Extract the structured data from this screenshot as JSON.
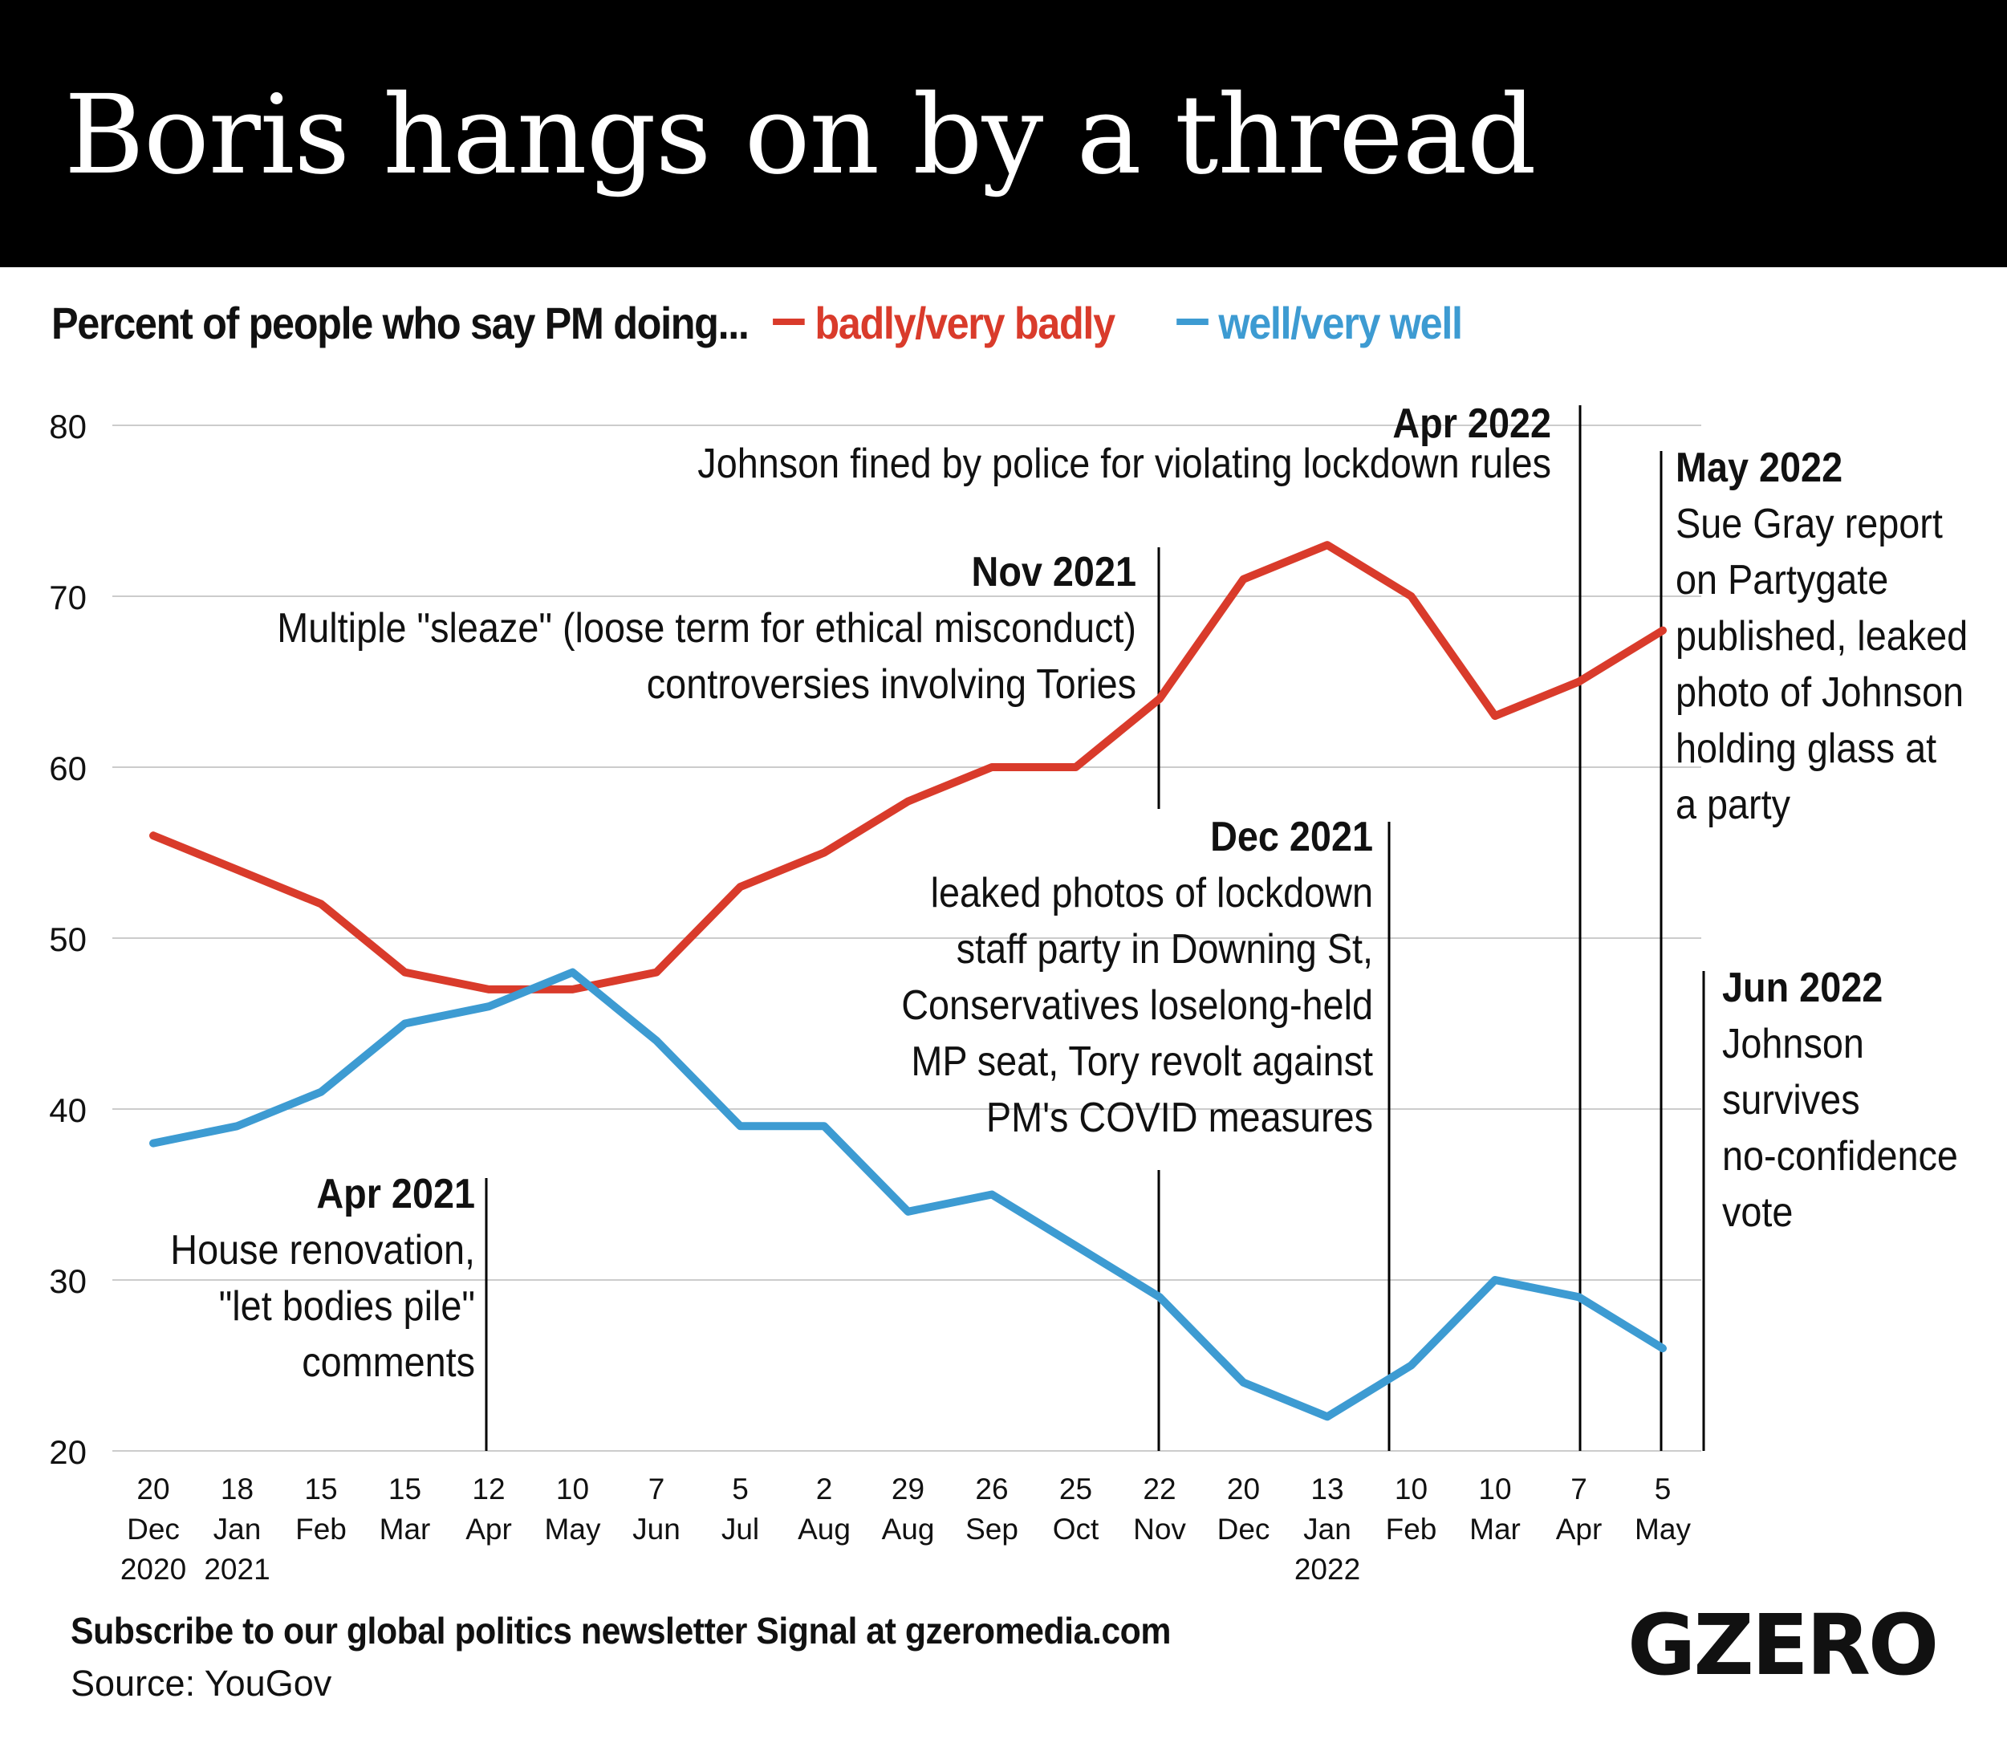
{
  "header": {
    "title": "Boris hangs on by a thread"
  },
  "subtitle": {
    "prefix": "Percent of people who say PM doing...",
    "series_labels": [
      "badly/very badly",
      "well/very well"
    ]
  },
  "colors": {
    "badly": "#d93b2b",
    "well": "#3d9bd2",
    "grid": "#cccccc",
    "text": "#111111",
    "header_bg": "#000000"
  },
  "chart_data": {
    "type": "line",
    "x_labels": [
      [
        "20",
        "Dec",
        "2020"
      ],
      [
        "18",
        "Jan",
        "2021"
      ],
      [
        "15",
        "Feb"
      ],
      [
        "15",
        "Mar"
      ],
      [
        "12",
        "Apr"
      ],
      [
        "10",
        "May"
      ],
      [
        "7",
        "Jun"
      ],
      [
        "5",
        "Jul"
      ],
      [
        "2",
        "Aug"
      ],
      [
        "29",
        "Aug"
      ],
      [
        "26",
        "Sep"
      ],
      [
        "25",
        "Oct"
      ],
      [
        "22",
        "Nov"
      ],
      [
        "20",
        "Dec"
      ],
      [
        "13",
        "Jan",
        "2022"
      ],
      [
        "10",
        "Feb"
      ],
      [
        "10",
        "Mar"
      ],
      [
        "7",
        "Apr"
      ],
      [
        "5",
        "May"
      ]
    ],
    "series": [
      {
        "name": "badly/very badly",
        "values": [
          56,
          54,
          52,
          48,
          47,
          47,
          48,
          53,
          55,
          58,
          60,
          60,
          64,
          71,
          73,
          70,
          63,
          65,
          68
        ]
      },
      {
        "name": "well/very well",
        "values": [
          38,
          39,
          41,
          45,
          46,
          48,
          44,
          39,
          39,
          34,
          35,
          32,
          29,
          24,
          22,
          25,
          30,
          29,
          26
        ]
      }
    ],
    "ylim": [
      20,
      80
    ],
    "y_ticks": [
      20,
      30,
      40,
      50,
      60,
      70,
      80
    ],
    "grid": true,
    "annotations": [
      {
        "title": "Apr 2021",
        "lines": [
          "House renovation,",
          "\"let bodies pile\"",
          "comments"
        ]
      },
      {
        "title": "Nov 2021",
        "lines": [
          "Multiple \"sleaze\" (loose term for ethical misconduct)",
          "controversies involving Tories"
        ]
      },
      {
        "title": "Dec 2021",
        "lines": [
          "leaked photos of lockdown",
          "staff party in Downing St,",
          "Conservatives loselong-held",
          "MP seat, Tory revolt against",
          "PM's COVID measures"
        ]
      },
      {
        "title": "Apr 2022",
        "lines": [
          "Johnson fined by police for violating lockdown rules"
        ]
      },
      {
        "title": "May 2022",
        "lines": [
          "Sue Gray report",
          "on Partygate",
          "published, leaked",
          "photo of Johnson",
          "holding glass at",
          "a party"
        ]
      },
      {
        "title": "Jun 2022",
        "lines": [
          "Johnson",
          "survives",
          "no-confidence",
          "vote"
        ]
      }
    ]
  },
  "footer": {
    "subscribe": "Subscribe to our global politics newsletter Signal at gzeromedia.com",
    "source": "Source: YouGov",
    "logo": "GZERO"
  }
}
